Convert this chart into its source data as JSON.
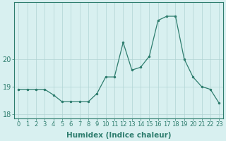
{
  "x": [
    0,
    1,
    2,
    3,
    4,
    5,
    6,
    7,
    8,
    9,
    10,
    11,
    12,
    13,
    14,
    15,
    16,
    17,
    18,
    19,
    20,
    21,
    22,
    23
  ],
  "y": [
    18.9,
    18.9,
    18.9,
    18.9,
    18.7,
    18.45,
    18.45,
    18.45,
    18.45,
    18.75,
    19.35,
    19.35,
    20.6,
    19.6,
    19.7,
    20.1,
    21.4,
    21.55,
    21.55,
    20.0,
    19.35,
    19.0,
    18.9,
    18.4
  ],
  "xlabel": "Humidex (Indice chaleur)",
  "ylabel": "",
  "ylim": [
    17.85,
    22.05
  ],
  "xlim": [
    -0.5,
    23.5
  ],
  "yticks": [
    18,
    19,
    20
  ],
  "xticks": [
    0,
    1,
    2,
    3,
    4,
    5,
    6,
    7,
    8,
    9,
    10,
    11,
    12,
    13,
    14,
    15,
    16,
    17,
    18,
    19,
    20,
    21,
    22,
    23
  ],
  "line_color": "#2e7d6e",
  "marker_color": "#2e7d6e",
  "bg_color": "#d8f0f0",
  "grid_color": "#b0d4d4",
  "axis_color": "#2e7d6e",
  "label_fontsize": 7,
  "tick_fontsize": 6.0
}
